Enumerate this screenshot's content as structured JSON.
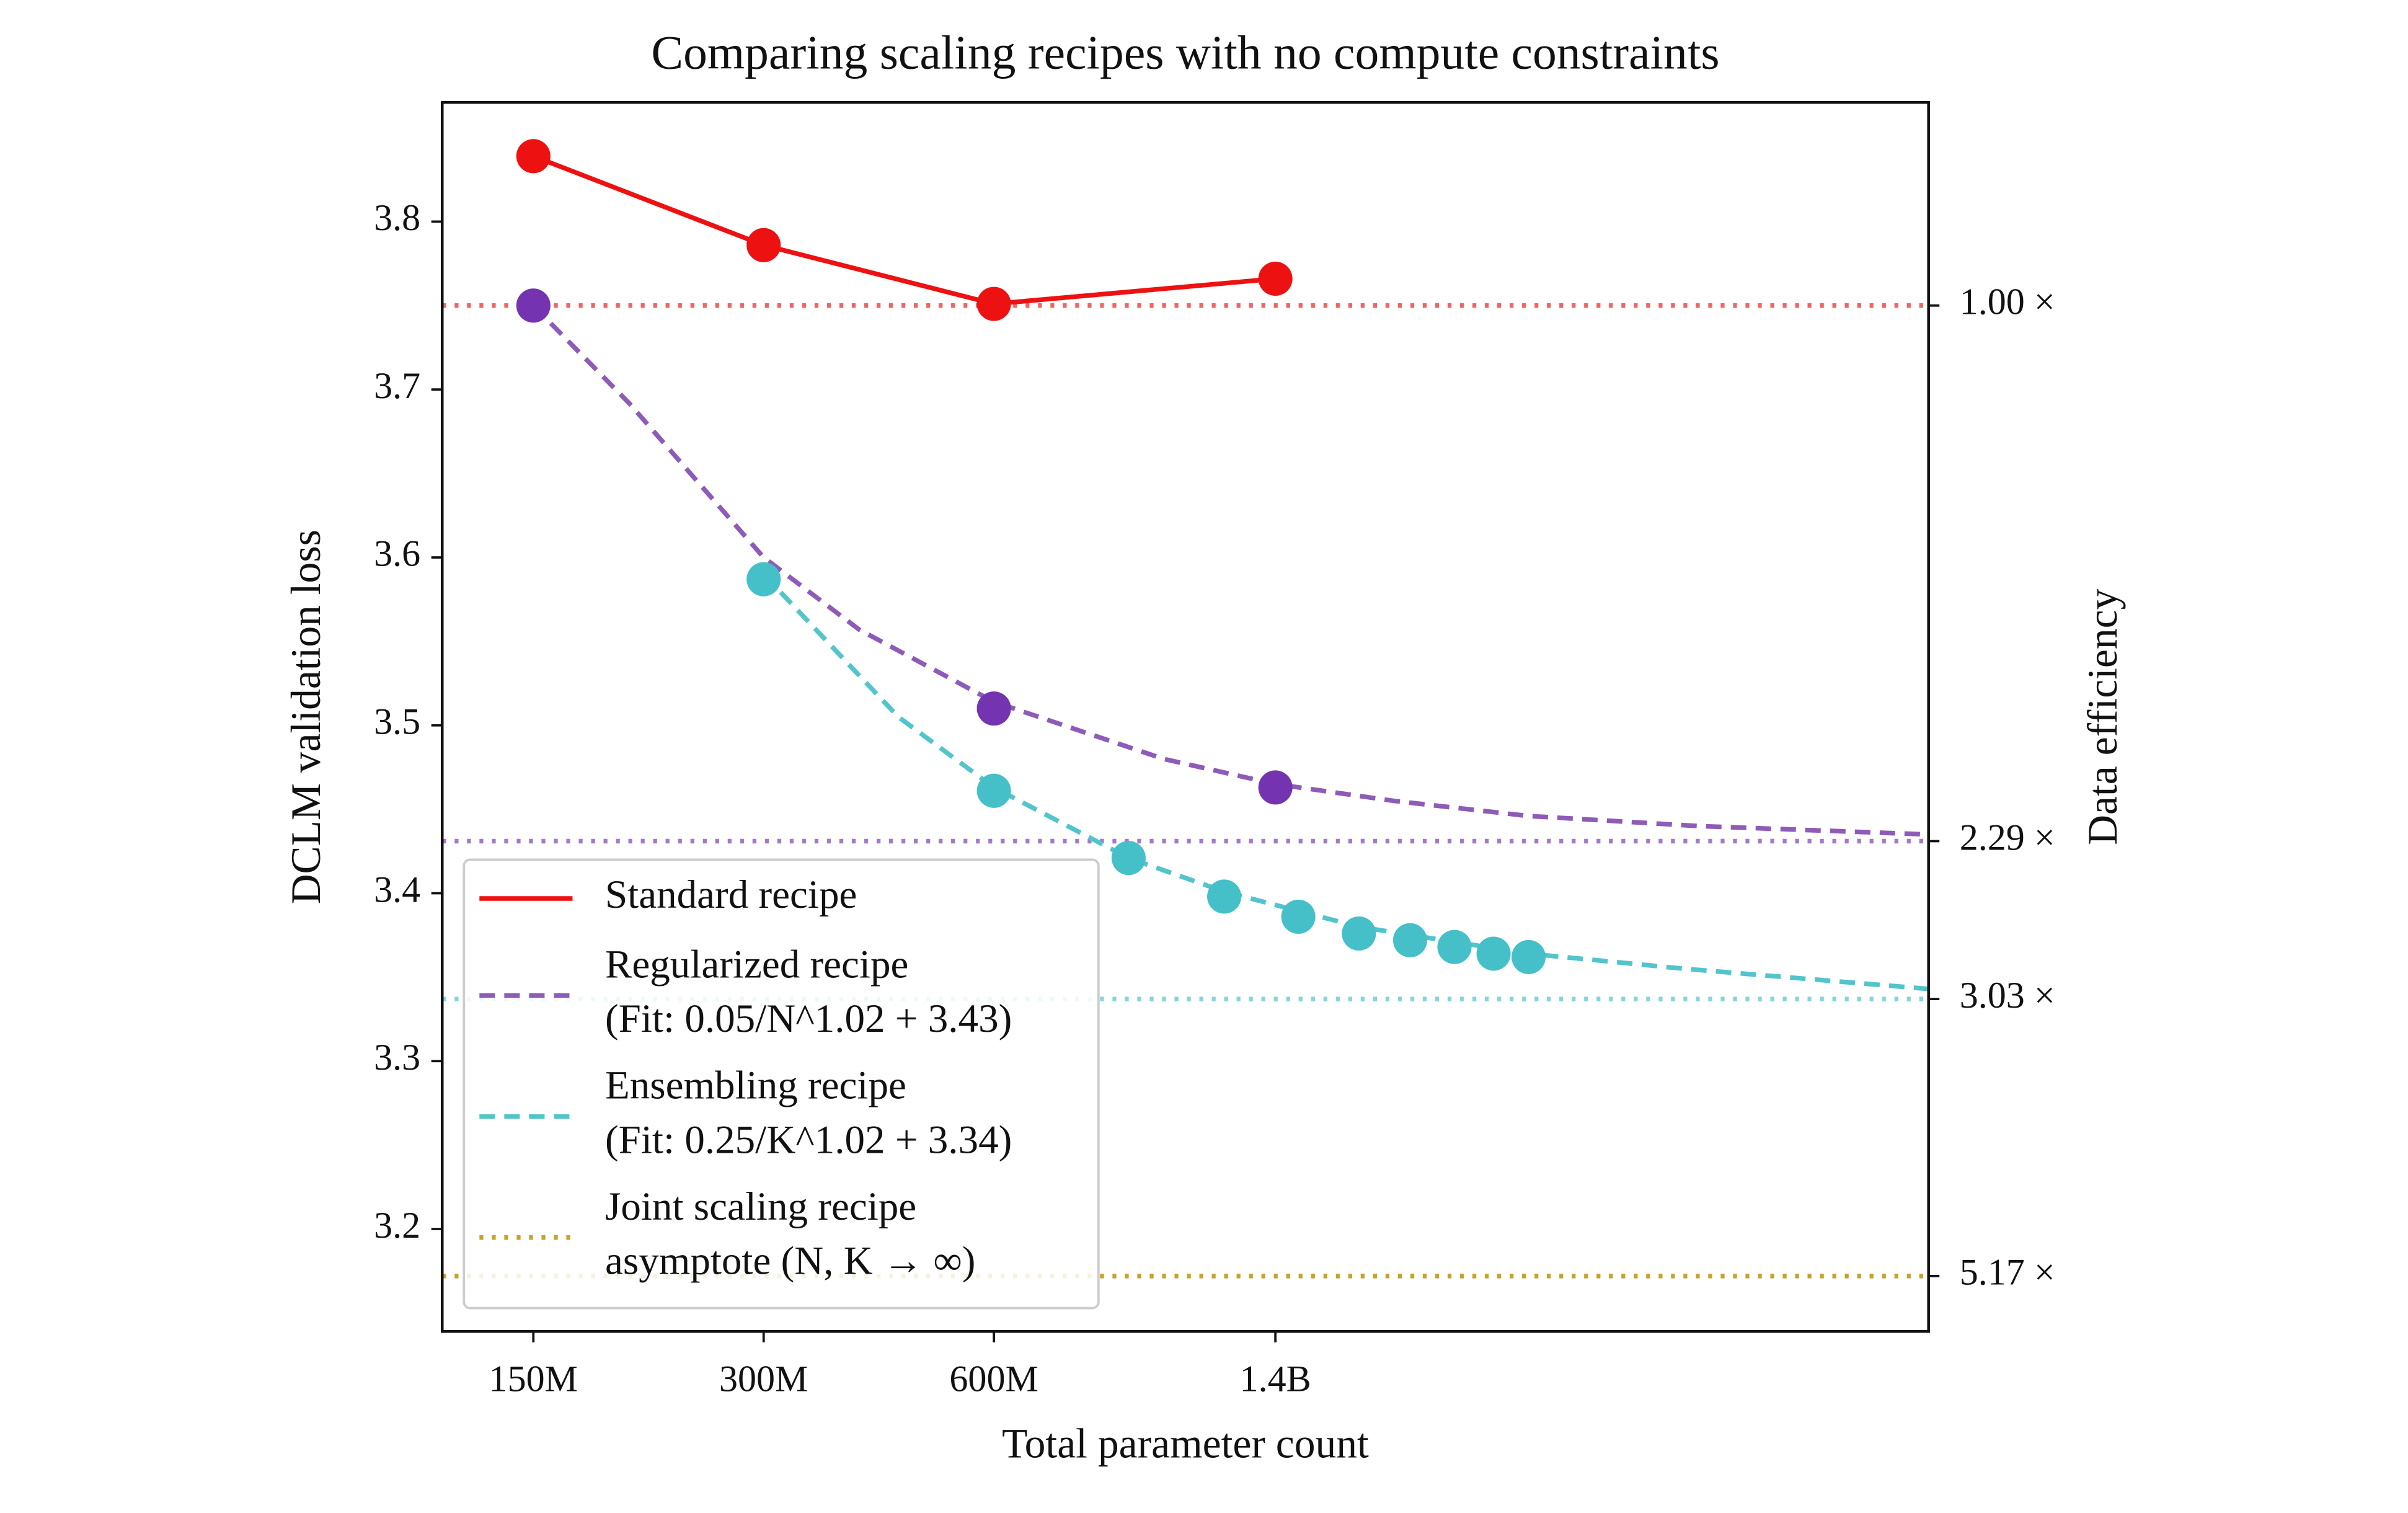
{
  "chart_data": {
    "type": "line",
    "title": "Comparing scaling recipes with no compute constraints",
    "xlabel": "Total parameter count",
    "ylabel": "DCLM validation loss",
    "y2label": "Data efficiency",
    "xscale": "log",
    "xlim": [
      114000000,
      10000000000
    ],
    "xticks": [
      {
        "value": 150000000,
        "label": "150M"
      },
      {
        "value": 300000000,
        "label": "300M"
      },
      {
        "value": 600000000,
        "label": "600M"
      },
      {
        "value": 1400000000,
        "label": "1.4B"
      }
    ],
    "ylim": [
      3.139,
      3.871
    ],
    "yticks": [
      3.2,
      3.3,
      3.4,
      3.5,
      3.6,
      3.7,
      3.8
    ],
    "legend": "lower left",
    "series": [
      {
        "name": [
          "Standard recipe"
        ],
        "color": "#ee1111",
        "line_style": "solid",
        "x": [
          150000000,
          300000000,
          600000000,
          1400000000
        ],
        "values": [
          3.839,
          3.786,
          3.751,
          3.766
        ],
        "hline": 3.75,
        "hline_label": "1.00 ×"
      },
      {
        "name": [
          "Regularized recipe",
          "(Fit: 0.05/N^1.02 + 3.43)"
        ],
        "color": "#7433b0",
        "fit_color": "#8e5bb8",
        "line_style": "dashed",
        "x": [
          150000000,
          600000000,
          1400000000
        ],
        "values": [
          3.75,
          3.51,
          3.463
        ],
        "fit": {
          "x": [
            150000000,
            200000000,
            300000000,
            400000000,
            600000000,
            1000000000,
            1400000000,
            2000000000,
            3000000000,
            5000000000,
            10000000000
          ],
          "values": [
            3.75,
            3.692,
            3.6,
            3.557,
            3.514,
            3.48,
            3.465,
            3.455,
            3.446,
            3.44,
            3.435
          ]
        },
        "hline": 3.431,
        "hline_label": "2.29 ×"
      },
      {
        "name": [
          "Ensembling recipe",
          "(Fit: 0.25/K^1.02 + 3.34)"
        ],
        "color": "#45c0c8",
        "fit_color": "#52c4cc",
        "line_style": "dashed",
        "x": [
          300000000,
          600000000,
          900000000,
          1200000000,
          1500000000,
          1800000000,
          2100000000,
          2400000000,
          2700000000,
          3000000000
        ],
        "values": [
          3.587,
          3.461,
          3.421,
          3.398,
          3.386,
          3.376,
          3.372,
          3.368,
          3.364,
          3.362
        ],
        "fit": {
          "x": [
            300000000,
            450000000,
            600000000,
            900000000,
            1200000000,
            1800000000,
            3000000000,
            4800000000,
            10000000000
          ],
          "values": [
            3.59,
            3.505,
            3.463,
            3.421,
            3.401,
            3.38,
            3.364,
            3.355,
            3.343
          ]
        },
        "hline": 3.337,
        "hline_label": "3.03 ×"
      },
      {
        "name": [
          "Joint scaling recipe",
          "asymptote (N, K → ∞)"
        ],
        "color": "#c9a227",
        "line_style": "dotted",
        "hline": 3.172,
        "hline_label": "5.17 ×"
      }
    ]
  }
}
